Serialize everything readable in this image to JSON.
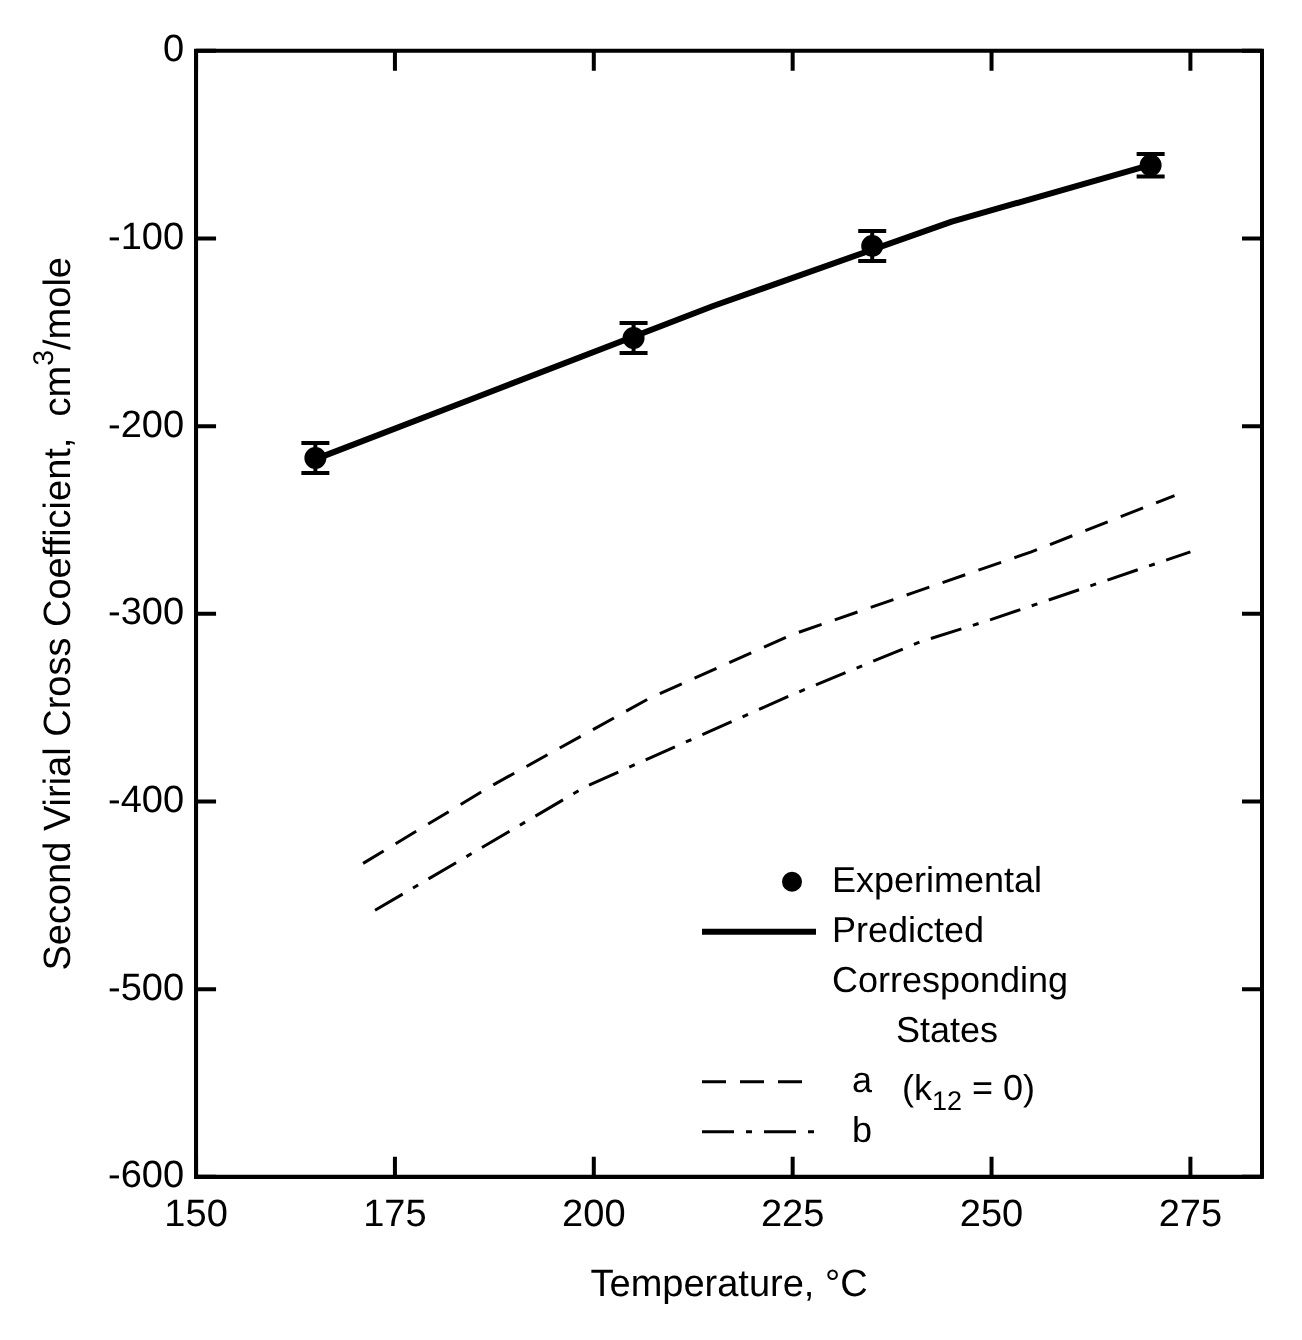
{
  "chart_data": {
    "type": "line",
    "xlabel": "Temperature, °C",
    "ylabel": "Second Virial Cross Coefficient,  cm$^{3}$/mole",
    "legend_title": "Corresponding States",
    "legend": "bottom right",
    "xlim": [
      150,
      284
    ],
    "xticks": [
      150,
      175,
      200,
      225,
      250,
      275
    ],
    "ylim": [
      -600,
      0
    ],
    "yticks": [
      0,
      -100,
      -200,
      -300,
      -400,
      -500,
      -600
    ],
    "annotations": [
      "(k$_{12}$ = 0)"
    ],
    "series": [
      {
        "name": "Experimental",
        "type": "scatter",
        "color": "#000000",
        "x": [
          165,
          205,
          235,
          270
        ],
        "values": [
          -217,
          -153,
          -104,
          -61
        ],
        "errors": [
          8,
          8,
          8,
          6
        ]
      },
      {
        "name": "Predicted",
        "color": "#000000",
        "line_style": "solid",
        "marker": "none",
        "x": [
          166,
          185,
          215,
          245,
          269
        ],
        "values": [
          -216,
          -185,
          -136,
          -91,
          -62
        ]
      },
      {
        "name": "a",
        "color": "#000000",
        "line_style": "dashed",
        "x": [
          171,
          187,
          207,
          225,
          240,
          255,
          273
        ],
        "values": [
          -433,
          -392,
          -345,
          -311,
          -289,
          -267,
          -237
        ]
      },
      {
        "name": "b",
        "color": "#000000",
        "line_style": "dashdot",
        "x": [
          172.5,
          199,
          225,
          241,
          250,
          275
        ],
        "values": [
          -458,
          -392,
          -343,
          -315,
          -303,
          -267
        ]
      }
    ]
  }
}
